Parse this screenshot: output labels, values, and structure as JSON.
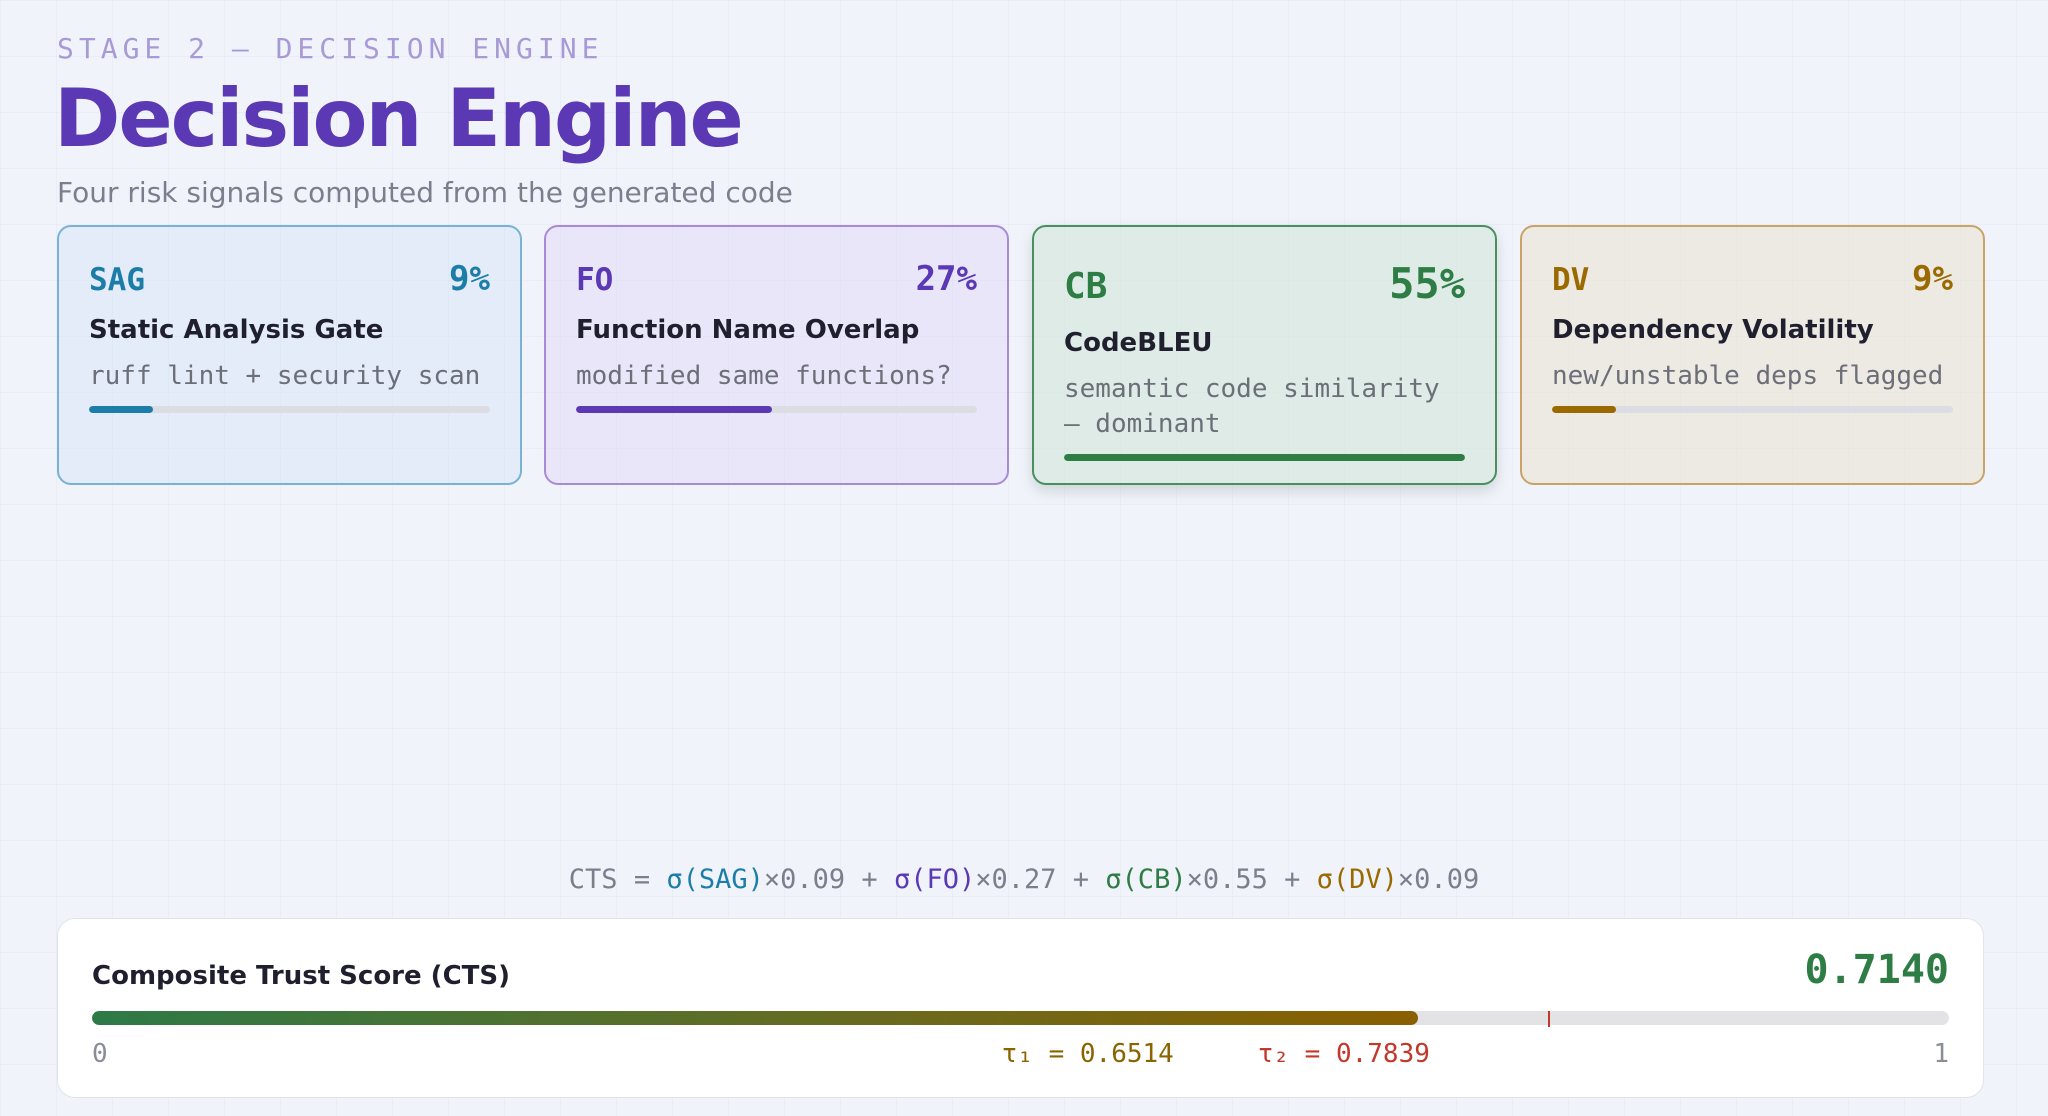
{
  "header": {
    "eyebrow": "STAGE 2 — DECISION ENGINE",
    "title": "Decision Engine",
    "subtitle": "Four risk signals computed from the generated code"
  },
  "signals": [
    {
      "abbr": "SAG",
      "weight": "9%",
      "name": "Static Analysis Gate",
      "desc": "ruff lint + security scan",
      "fill": 0.16,
      "color": "#1c7ea8"
    },
    {
      "abbr": "FO",
      "weight": "27%",
      "name": "Function Name Overlap",
      "desc": "modified same functions?",
      "fill": 0.49,
      "color": "#5b38b4"
    },
    {
      "abbr": "CB",
      "weight": "55%",
      "name": "CodeBLEU",
      "desc": "semantic code similarity — dominant",
      "fill": 1.0,
      "color": "#2e7d45"
    },
    {
      "abbr": "DV",
      "weight": "9%",
      "name": "Dependency Volatility",
      "desc": "new/unstable deps flagged",
      "fill": 0.16,
      "color": "#9a6a00"
    }
  ],
  "formula": {
    "lhs": "CTS =",
    "terms": [
      {
        "sig": "σ(SAG)",
        "w": "×0.09",
        "color": "#1c7ea8"
      },
      {
        "sig": "σ(FO)",
        "w": "×0.27",
        "color": "#5b38b4"
      },
      {
        "sig": "σ(CB)",
        "w": "×0.55",
        "color": "#2e7d45"
      },
      {
        "sig": "σ(DV)",
        "w": "×0.09",
        "color": "#9a6a00"
      }
    ]
  },
  "cts": {
    "label": "Composite Trust Score (CTS)",
    "value_text": "0.7140",
    "value": 0.714,
    "scale_min": "0",
    "scale_max": "1",
    "tau1_label": "τ₁ = 0.6514",
    "tau1": 0.6514,
    "tau2_label": "τ₂ = 0.7839",
    "tau2": 0.7839,
    "colors": {
      "value": "#2e7d45",
      "tau1": "#8a6400",
      "tau2": "#c0392b"
    }
  }
}
